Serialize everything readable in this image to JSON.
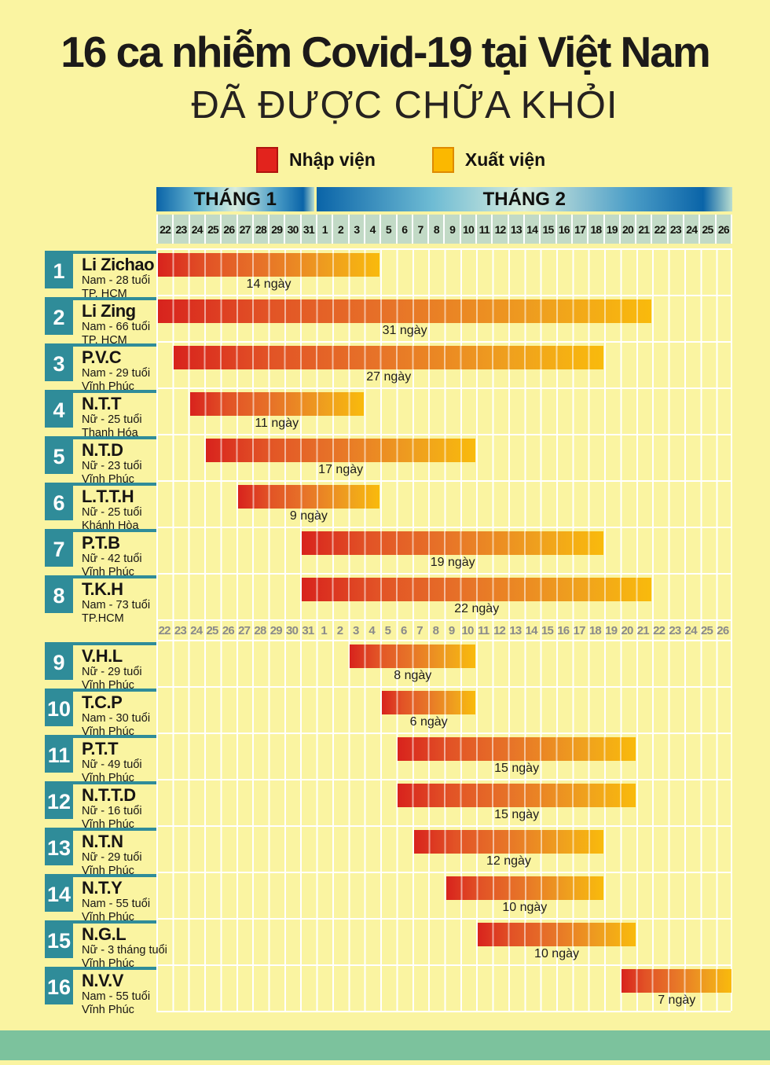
{
  "page": {
    "background_color": "#FAF4A1",
    "footer_band_color": "#7CC29D"
  },
  "title": "16 ca nhiễm Covid-19 tại Việt Nam",
  "subtitle": "ĐÃ ĐƯỢC CHỮA KHỎI",
  "legend": {
    "admitted": {
      "label": "Nhập viện",
      "color": "#E2231D"
    },
    "discharged": {
      "label": "Xuất viện",
      "color": "#FBB800"
    }
  },
  "chart_data": {
    "type": "bar",
    "variant": "horizontal-gantt-timeline",
    "title": "16 ca nhiễm Covid-19 tại Việt Nam ĐÃ ĐƯỢC CHỮA KHỎI",
    "legend_entries": [
      "Nhập viện",
      "Xuất viện"
    ],
    "months": [
      {
        "label": "THÁNG 1",
        "days": 10
      },
      {
        "label": "THÁNG 2",
        "days": 26
      }
    ],
    "day_labels": [
      "22",
      "23",
      "24",
      "25",
      "26",
      "27",
      "28",
      "29",
      "30",
      "31",
      "1",
      "2",
      "3",
      "4",
      "5",
      "6",
      "7",
      "8",
      "9",
      "10",
      "11",
      "12",
      "13",
      "14",
      "15",
      "16",
      "17",
      "18",
      "19",
      "20",
      "21",
      "22",
      "23",
      "24",
      "25",
      "26"
    ],
    "axis_repeated_after_case": 8,
    "bar_gradient": [
      "#D8231D",
      "#E25326",
      "#E77428",
      "#EFA01E",
      "#F9BA0C"
    ],
    "grid_on": true,
    "cases": [
      {
        "num": "1",
        "name": "Li Zichao",
        "detail1": "Nam - 28 tuổi",
        "detail2": "TP. HCM",
        "start_index": 0,
        "days": 14,
        "duration_label": "14 ngày",
        "admitted": "22/1",
        "discharged": "4/2"
      },
      {
        "num": "2",
        "name": "Li Zing",
        "detail1": "Nam - 66 tuổi",
        "detail2": "TP. HCM",
        "start_index": 0,
        "days": 31,
        "duration_label": "31 ngày",
        "admitted": "22/1",
        "discharged": "21/2"
      },
      {
        "num": "3",
        "name": "P.V.C",
        "detail1": "Nam - 29 tuổi",
        "detail2": "Vĩnh Phúc",
        "start_index": 1,
        "days": 27,
        "duration_label": "27 ngày",
        "admitted": "23/1",
        "discharged": "18/2"
      },
      {
        "num": "4",
        "name": "N.T.T",
        "detail1": "Nữ - 25 tuổi",
        "detail2": "Thanh Hóa",
        "start_index": 2,
        "days": 11,
        "duration_label": "11 ngày",
        "admitted": "24/1",
        "discharged": "3/2"
      },
      {
        "num": "5",
        "name": "N.T.D",
        "detail1": "Nữ - 23 tuổi",
        "detail2": "Vĩnh Phúc",
        "start_index": 3,
        "days": 17,
        "duration_label": "17 ngày",
        "admitted": "25/1",
        "discharged": "10/2"
      },
      {
        "num": "6",
        "name": "L.T.T.H",
        "detail1": "Nữ - 25 tuổi",
        "detail2": "Khánh Hòa",
        "start_index": 5,
        "days": 9,
        "duration_label": "9 ngày",
        "admitted": "27/1",
        "discharged": "4/2"
      },
      {
        "num": "7",
        "name": "P.T.B",
        "detail1": "Nữ - 42 tuổi",
        "detail2": "Vĩnh Phúc",
        "start_index": 9,
        "days": 19,
        "duration_label": "19 ngày",
        "admitted": "31/1",
        "discharged": "18/2"
      },
      {
        "num": "8",
        "name": "T.K.H",
        "detail1": "Nam - 73 tuổi",
        "detail2": "TP.HCM",
        "start_index": 9,
        "days": 22,
        "duration_label": "22 ngày",
        "admitted": "31/1",
        "discharged": "21/2"
      },
      {
        "num": "9",
        "name": "V.H.L",
        "detail1": "Nữ - 29 tuổi",
        "detail2": "Vĩnh Phúc",
        "start_index": 12,
        "days": 8,
        "duration_label": "8 ngày",
        "admitted": "3/2",
        "discharged": "10/2"
      },
      {
        "num": "10",
        "name": "T.C.P",
        "detail1": "Nam - 30 tuổi",
        "detail2": "Vĩnh Phúc",
        "start_index": 14,
        "days": 6,
        "duration_label": "6 ngày",
        "admitted": "5/2",
        "discharged": "10/2"
      },
      {
        "num": "11",
        "name": "P.T.T",
        "detail1": "Nữ - 49 tuổi",
        "detail2": "Vĩnh Phúc",
        "start_index": 15,
        "days": 15,
        "duration_label": "15 ngày",
        "admitted": "6/2",
        "discharged": "20/2"
      },
      {
        "num": "12",
        "name": "N.T.T.D",
        "detail1": "Nữ - 16 tuổi",
        "detail2": "Vĩnh Phúc",
        "start_index": 15,
        "days": 15,
        "duration_label": "15 ngày",
        "admitted": "6/2",
        "discharged": "20/2"
      },
      {
        "num": "13",
        "name": "N.T.N",
        "detail1": "Nữ - 29 tuổi",
        "detail2": "Vĩnh Phúc",
        "start_index": 16,
        "days": 12,
        "duration_label": "12 ngày",
        "admitted": "7/2",
        "discharged": "18/2"
      },
      {
        "num": "14",
        "name": "N.T.Y",
        "detail1": "Nam - 55 tuổi",
        "detail2": "Vĩnh Phúc",
        "start_index": 18,
        "days": 10,
        "duration_label": "10 ngày",
        "admitted": "9/2",
        "discharged": "18/2"
      },
      {
        "num": "15",
        "name": "N.G.L",
        "detail1": "Nữ - 3 tháng tuổi",
        "detail2": "Vĩnh Phúc",
        "start_index": 20,
        "days": 10,
        "duration_label": "10 ngày",
        "admitted": "11/2",
        "discharged": "20/2"
      },
      {
        "num": "16",
        "name": "N.V.V",
        "detail1": "Nam - 55 tuổi",
        "detail2": "Vĩnh Phúc",
        "start_index": 29,
        "days": 7,
        "duration_label": "7 ngày",
        "admitted": "20/2",
        "discharged": "26/2"
      }
    ]
  }
}
